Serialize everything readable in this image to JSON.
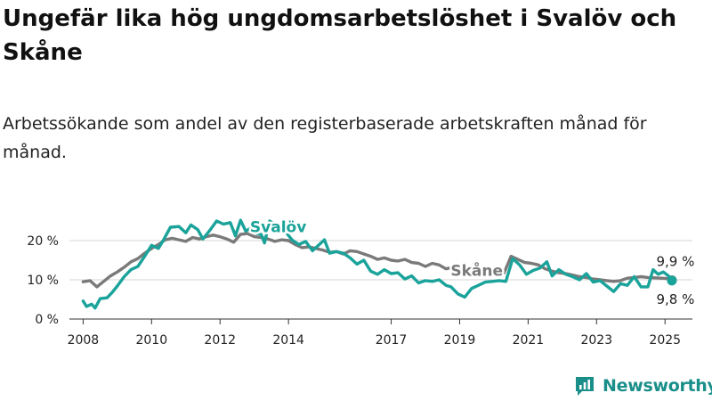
{
  "title": "Ungefär lika hög ungdomsarbetslöshet i Svalöv och Skåne",
  "subtitle": "Arbetssökande som andel av den registerbaserade arbetskraften månad för månad.",
  "brand": {
    "name": "Newsworthy",
    "icon": "newsworthy-logo-icon",
    "color": "#1a8f8a"
  },
  "chart_data": {
    "type": "line",
    "x_unit": "year (fractional, monthly data)",
    "xlim": [
      2007.6,
      2025.8
    ],
    "ylim": [
      0,
      25
    ],
    "y_ticks": [
      0,
      10,
      20
    ],
    "y_tick_labels": [
      "0 %",
      "10 %",
      "20 %"
    ],
    "x_ticks": [
      2008,
      2010,
      2012,
      2014,
      2017,
      2019,
      2021,
      2023,
      2025
    ],
    "x_tick_labels": [
      "2008",
      "2010",
      "2012",
      "2014",
      "2017",
      "2019",
      "2021",
      "2023",
      "2025"
    ],
    "grid": true,
    "legend": "inline labels",
    "series": [
      {
        "name": "Skåne",
        "color": "#7a7a7a",
        "points": [
          [
            2008.0,
            9.5
          ],
          [
            2008.2,
            9.8
          ],
          [
            2008.4,
            8.2
          ],
          [
            2008.6,
            9.6
          ],
          [
            2008.8,
            11.0
          ],
          [
            2009.0,
            12.0
          ],
          [
            2009.2,
            13.2
          ],
          [
            2009.4,
            14.6
          ],
          [
            2009.6,
            15.4
          ],
          [
            2009.8,
            16.8
          ],
          [
            2010.0,
            18.0
          ],
          [
            2010.2,
            19.0
          ],
          [
            2010.4,
            20.2
          ],
          [
            2010.6,
            20.6
          ],
          [
            2010.8,
            20.2
          ],
          [
            2011.0,
            19.8
          ],
          [
            2011.2,
            20.8
          ],
          [
            2011.4,
            20.4
          ],
          [
            2011.6,
            21.0
          ],
          [
            2011.8,
            21.4
          ],
          [
            2012.0,
            21.0
          ],
          [
            2012.2,
            20.4
          ],
          [
            2012.4,
            19.6
          ],
          [
            2012.6,
            21.6
          ],
          [
            2012.8,
            21.8
          ],
          [
            2013.0,
            21.0
          ],
          [
            2013.2,
            20.8
          ],
          [
            2013.4,
            20.4
          ],
          [
            2013.6,
            19.8
          ],
          [
            2013.8,
            20.2
          ],
          [
            2014.0,
            20.0
          ],
          [
            2014.2,
            19.0
          ],
          [
            2014.4,
            18.2
          ],
          [
            2014.6,
            18.4
          ],
          [
            2014.8,
            18.0
          ],
          [
            2015.0,
            17.6
          ],
          [
            2015.2,
            17.0
          ],
          [
            2015.4,
            17.2
          ],
          [
            2015.6,
            16.6
          ],
          [
            2015.8,
            17.4
          ],
          [
            2016.0,
            17.2
          ],
          [
            2016.2,
            16.6
          ],
          [
            2016.4,
            16.0
          ],
          [
            2016.6,
            15.2
          ],
          [
            2016.8,
            15.6
          ],
          [
            2017.0,
            15.0
          ],
          [
            2017.2,
            14.8
          ],
          [
            2017.4,
            15.2
          ],
          [
            2017.6,
            14.4
          ],
          [
            2017.8,
            14.2
          ],
          [
            2018.0,
            13.4
          ],
          [
            2018.2,
            14.2
          ],
          [
            2018.4,
            13.8
          ],
          [
            2018.6,
            12.8
          ],
          [
            2018.8,
            13.2
          ],
          [
            2019.0,
            13.4
          ]
        ],
        "points_after_gap": [
          [
            2020.3,
            11.8
          ],
          [
            2020.5,
            16.0
          ],
          [
            2020.7,
            15.2
          ],
          [
            2020.9,
            14.4
          ],
          [
            2021.1,
            14.2
          ],
          [
            2021.3,
            13.8
          ],
          [
            2021.5,
            12.8
          ],
          [
            2021.7,
            12.2
          ],
          [
            2021.9,
            11.8
          ],
          [
            2022.1,
            11.6
          ],
          [
            2022.3,
            11.2
          ],
          [
            2022.5,
            10.8
          ],
          [
            2022.7,
            10.6
          ],
          [
            2022.9,
            10.2
          ],
          [
            2023.1,
            10.0
          ],
          [
            2023.3,
            9.8
          ],
          [
            2023.5,
            9.6
          ],
          [
            2023.7,
            9.8
          ],
          [
            2023.9,
            10.4
          ],
          [
            2024.1,
            10.6
          ],
          [
            2024.3,
            10.8
          ],
          [
            2024.5,
            10.6
          ],
          [
            2024.7,
            10.5
          ],
          [
            2024.9,
            10.4
          ],
          [
            2025.1,
            10.3
          ],
          [
            2025.2,
            9.9
          ]
        ]
      },
      {
        "name": "Svalöv",
        "color": "#1aa39a",
        "points": [
          [
            2008.0,
            4.6
          ],
          [
            2008.1,
            3.2
          ],
          [
            2008.25,
            3.8
          ],
          [
            2008.35,
            2.8
          ],
          [
            2008.5,
            5.2
          ],
          [
            2008.7,
            5.4
          ],
          [
            2008.85,
            6.8
          ],
          [
            2009.0,
            8.4
          ],
          [
            2009.2,
            10.8
          ],
          [
            2009.4,
            12.6
          ],
          [
            2009.6,
            13.4
          ],
          [
            2009.8,
            16.0
          ],
          [
            2010.0,
            18.8
          ],
          [
            2010.2,
            18.0
          ],
          [
            2010.35,
            20.2
          ],
          [
            2010.55,
            23.4
          ],
          [
            2010.8,
            23.6
          ],
          [
            2011.0,
            22.0
          ],
          [
            2011.15,
            24.0
          ],
          [
            2011.35,
            22.8
          ],
          [
            2011.5,
            20.4
          ],
          [
            2011.7,
            22.6
          ],
          [
            2011.9,
            25.0
          ],
          [
            2012.1,
            24.2
          ],
          [
            2012.3,
            24.6
          ],
          [
            2012.45,
            21.2
          ],
          [
            2012.6,
            25.2
          ],
          [
            2012.75,
            22.4
          ],
          [
            2012.9,
            23.2
          ],
          [
            2013.0,
            22.0
          ],
          [
            2013.2,
            21.6
          ],
          [
            2013.3,
            19.4
          ],
          [
            2013.45,
            25.0
          ],
          [
            2013.6,
            24.0
          ],
          [
            2013.75,
            22.2
          ],
          [
            2013.9,
            22.4
          ],
          [
            2014.1,
            20.2
          ],
          [
            2014.3,
            19.0
          ],
          [
            2014.5,
            19.8
          ],
          [
            2014.7,
            17.4
          ],
          [
            2014.9,
            19.0
          ],
          [
            2015.05,
            20.2
          ],
          [
            2015.2,
            16.8
          ],
          [
            2015.4,
            17.2
          ],
          [
            2015.6,
            16.8
          ],
          [
            2015.8,
            15.6
          ],
          [
            2016.0,
            14.0
          ],
          [
            2016.2,
            15.0
          ],
          [
            2016.4,
            12.2
          ],
          [
            2016.6,
            11.4
          ],
          [
            2016.8,
            12.6
          ],
          [
            2017.0,
            11.6
          ],
          [
            2017.2,
            11.8
          ],
          [
            2017.4,
            10.2
          ],
          [
            2017.6,
            11.0
          ],
          [
            2017.8,
            9.2
          ],
          [
            2018.0,
            9.8
          ],
          [
            2018.2,
            9.6
          ],
          [
            2018.4,
            10.0
          ],
          [
            2018.6,
            8.6
          ],
          [
            2018.75,
            8.2
          ],
          [
            2018.95,
            6.4
          ],
          [
            2019.15,
            5.6
          ],
          [
            2019.35,
            7.8
          ],
          [
            2019.55,
            8.6
          ],
          [
            2019.75,
            9.4
          ],
          [
            2019.95,
            9.6
          ],
          [
            2020.15,
            9.8
          ],
          [
            2020.35,
            9.6
          ],
          [
            2020.55,
            15.4
          ],
          [
            2020.75,
            13.8
          ],
          [
            2020.95,
            11.4
          ],
          [
            2021.15,
            12.4
          ],
          [
            2021.35,
            13.0
          ],
          [
            2021.55,
            14.6
          ],
          [
            2021.7,
            11.0
          ],
          [
            2021.9,
            12.6
          ],
          [
            2022.1,
            11.4
          ],
          [
            2022.3,
            10.8
          ],
          [
            2022.5,
            10.0
          ],
          [
            2022.7,
            11.6
          ],
          [
            2022.9,
            9.4
          ],
          [
            2023.1,
            9.8
          ],
          [
            2023.3,
            8.4
          ],
          [
            2023.5,
            7.0
          ],
          [
            2023.7,
            9.0
          ],
          [
            2023.9,
            8.6
          ],
          [
            2024.1,
            10.8
          ],
          [
            2024.3,
            8.2
          ],
          [
            2024.5,
            8.2
          ],
          [
            2024.65,
            12.6
          ],
          [
            2024.8,
            11.4
          ],
          [
            2024.95,
            12.0
          ],
          [
            2025.1,
            11.0
          ],
          [
            2025.2,
            9.8
          ]
        ]
      }
    ],
    "annotations": [
      {
        "text": "Svalöv",
        "series": "Svalöv",
        "x": 2013.7,
        "y": 22.2
      },
      {
        "text": "Skåne",
        "series": "Skåne",
        "x": 2019.5,
        "y": 11.0
      },
      {
        "text": "9,9 %",
        "series": "Skåne",
        "x": 2025.2,
        "y": 9.9,
        "position": "above"
      },
      {
        "text": "9,8 %",
        "series": "Svalöv",
        "x": 2025.2,
        "y": 9.8,
        "position": "below"
      }
    ]
  }
}
